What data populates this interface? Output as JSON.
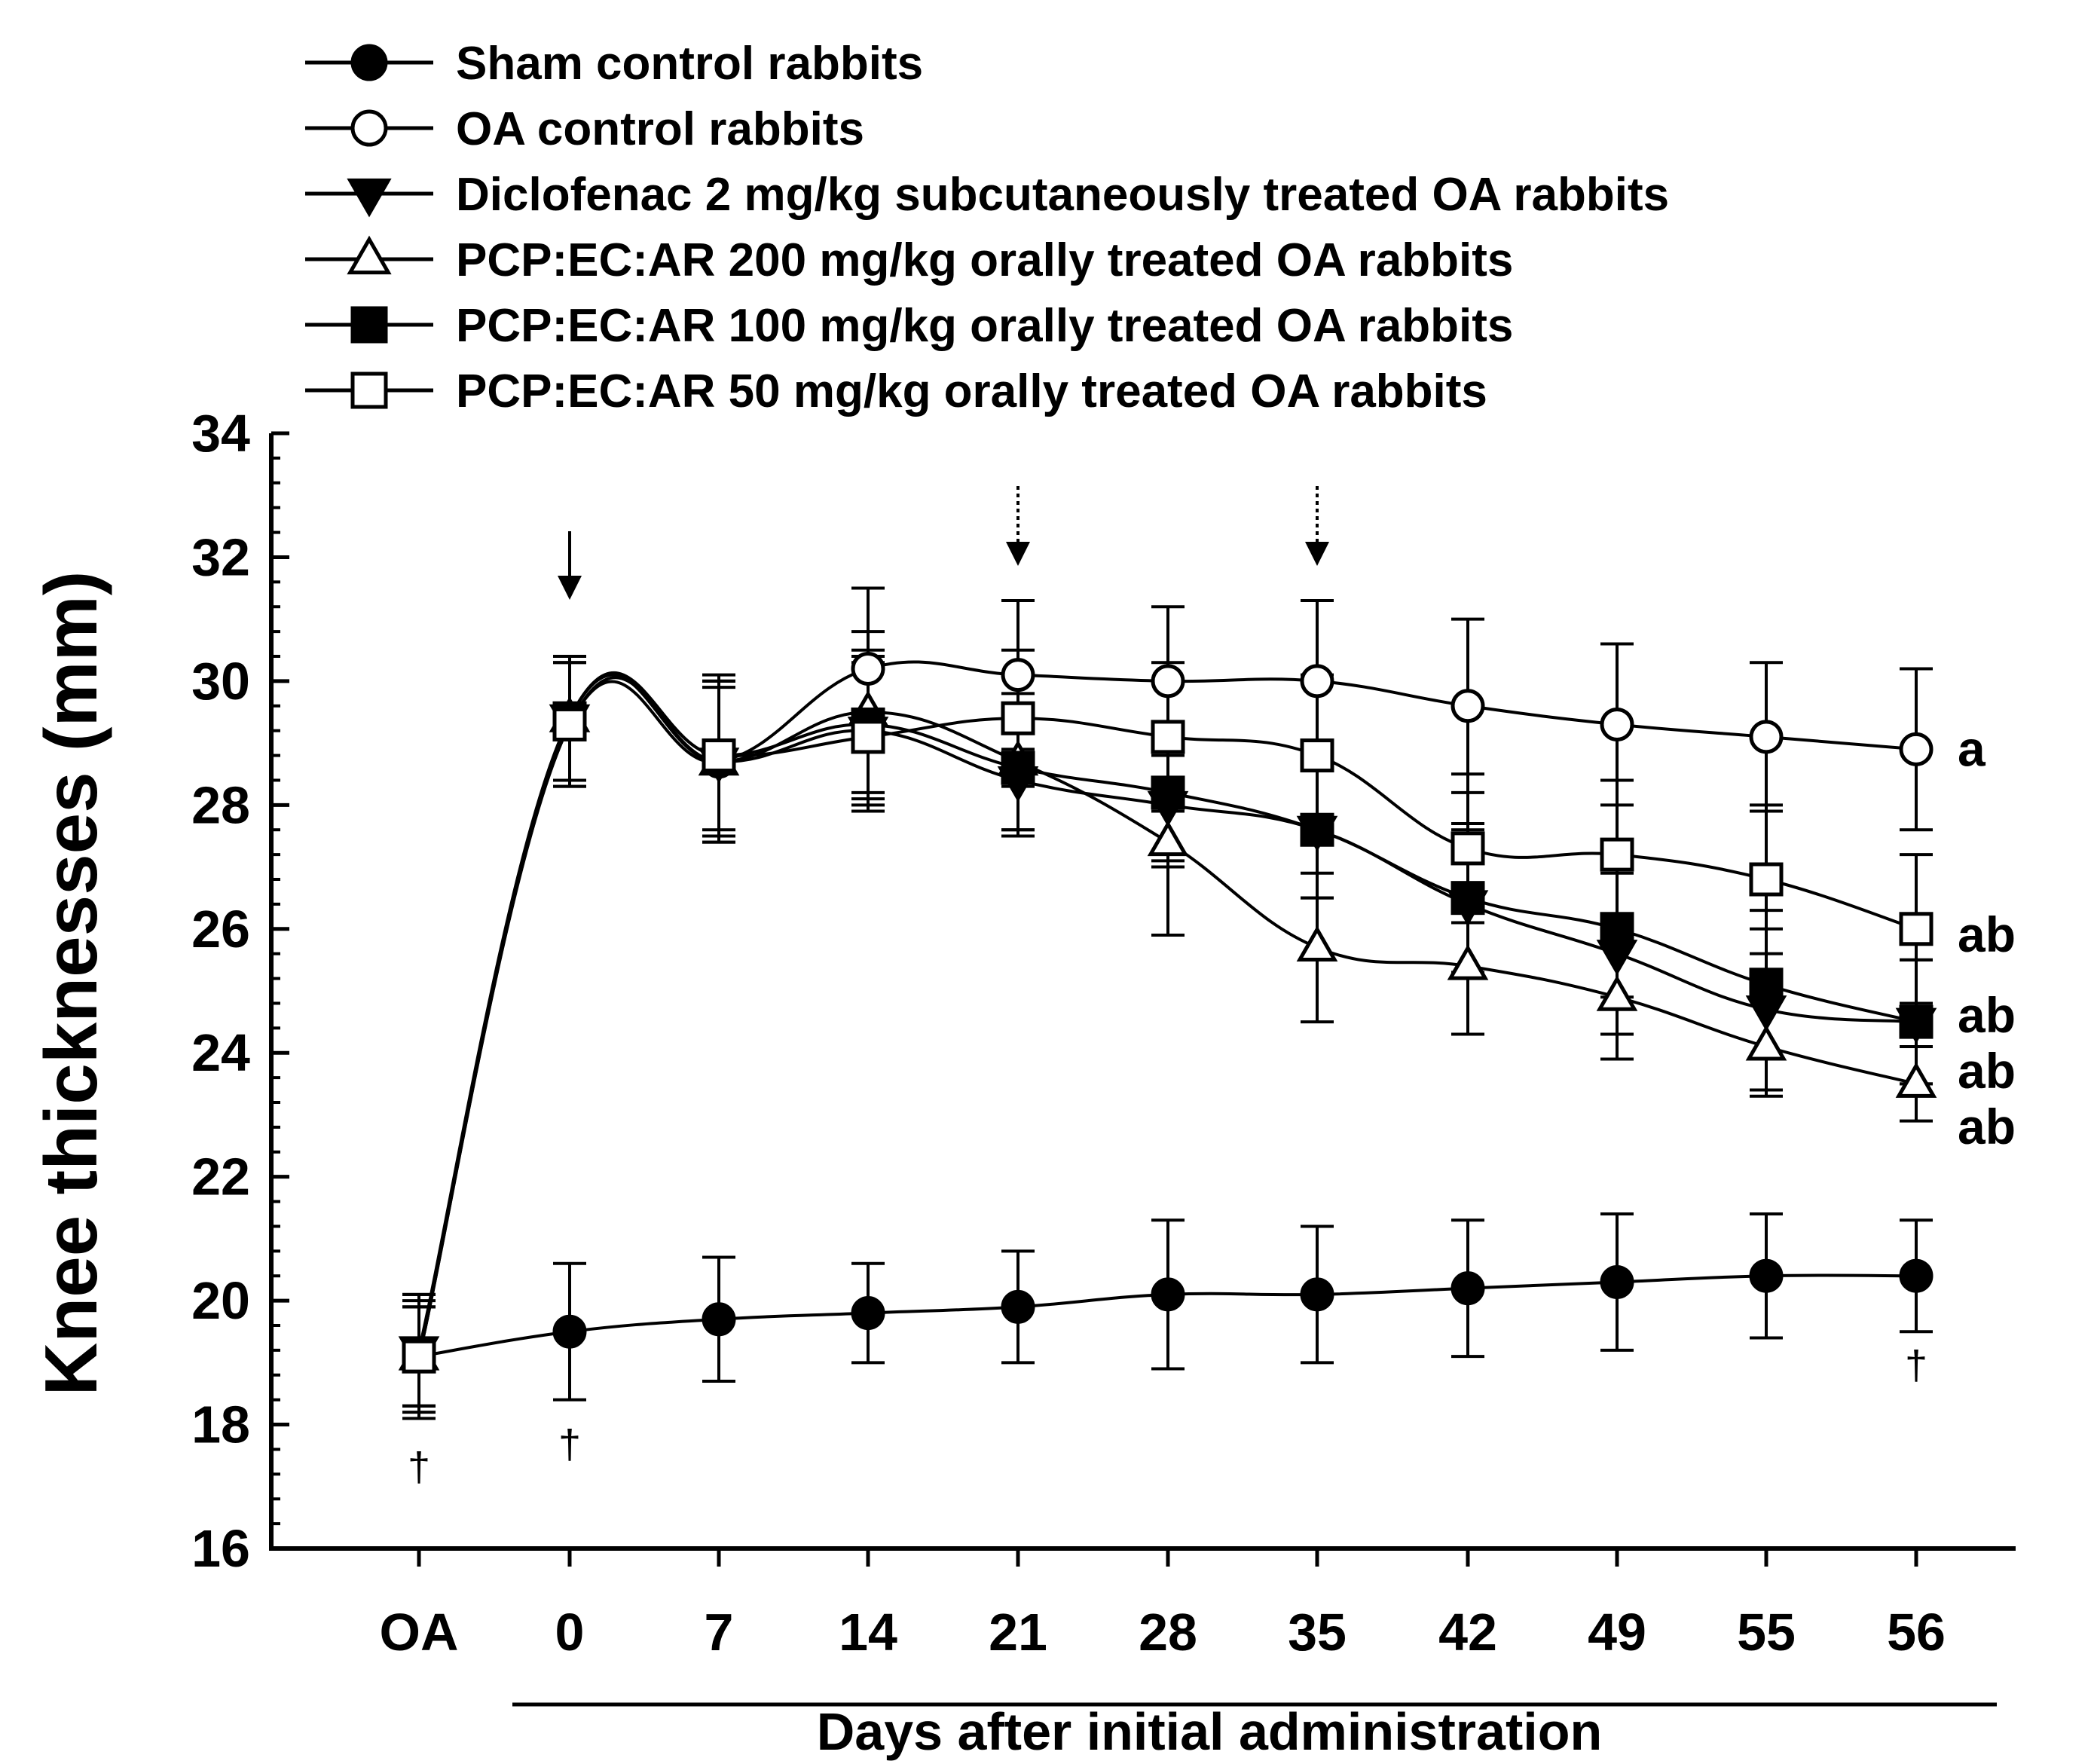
{
  "chart_data": {
    "type": "line",
    "title": "",
    "xlabel": "Days after initial administration",
    "ylabel": "Knee thicknesses (mm)",
    "categories": [
      "OA",
      "0",
      "7",
      "14",
      "21",
      "28",
      "35",
      "42",
      "49",
      "55",
      "56"
    ],
    "ylim": [
      16,
      34
    ],
    "yticks": [
      "16",
      "18",
      "20",
      "22",
      "24",
      "26",
      "28",
      "30",
      "32",
      "34"
    ],
    "series": [
      {
        "name": "Sham control rabbits",
        "marker": "circle-filled",
        "values": [
          19.1,
          19.5,
          19.7,
          19.8,
          19.9,
          20.1,
          20.1,
          20.2,
          20.3,
          20.4,
          20.4
        ],
        "errors": [
          0.9,
          1.1,
          1.0,
          0.8,
          0.9,
          1.2,
          1.1,
          1.1,
          1.1,
          1.0,
          0.9
        ]
      },
      {
        "name": "OA control rabbits",
        "marker": "circle-open",
        "values": [
          19.1,
          29.3,
          28.7,
          30.2,
          30.1,
          30.0,
          30.0,
          29.6,
          29.3,
          29.1,
          28.9
        ],
        "errors": [
          1.0,
          1.0,
          1.3,
          1.3,
          1.2,
          1.2,
          1.3,
          1.4,
          1.3,
          1.2,
          1.3
        ]
      },
      {
        "name": "Diclofenac 2 mg/kg subcutaneously treated OA rabbits",
        "marker": "triangle-down-filled",
        "values": [
          19.2,
          29.4,
          28.7,
          29.2,
          28.4,
          28.0,
          27.6,
          26.4,
          25.6,
          24.7,
          24.5
        ],
        "errors": [
          0.9,
          1.0,
          1.3,
          1.2,
          0.9,
          1.0,
          1.1,
          1.2,
          1.3,
          1.3,
          1.0
        ]
      },
      {
        "name": "PCP:EC:AR 200 mg/kg orally treated OA rabbits",
        "marker": "triangle-up-open",
        "values": [
          19.1,
          29.4,
          28.7,
          29.5,
          28.7,
          27.4,
          25.7,
          25.4,
          24.9,
          24.1,
          23.5
        ],
        "errors": [
          0.8,
          1.0,
          1.2,
          1.3,
          1.1,
          1.5,
          1.2,
          1.1,
          1.0,
          0.8,
          0.6
        ]
      },
      {
        "name": "PCP:EC:AR 100 mg/kg orally treated OA rabbits",
        "marker": "square-filled",
        "values": [
          19.1,
          29.4,
          28.8,
          29.3,
          28.6,
          28.2,
          27.6,
          26.5,
          26.0,
          25.1,
          24.5
        ],
        "errors": [
          0.8,
          1.0,
          1.3,
          1.2,
          1.0,
          1.1,
          1.1,
          1.2,
          1.1,
          1.2,
          1.0
        ]
      },
      {
        "name": "PCP:EC:AR 50 mg/kg orally treated OA rabbits",
        "marker": "square-open",
        "values": [
          19.1,
          29.3,
          28.8,
          29.1,
          29.4,
          29.1,
          28.8,
          27.3,
          27.2,
          26.8,
          26.0
        ],
        "errors": [
          0.8,
          1.0,
          1.2,
          1.2,
          1.1,
          1.2,
          1.3,
          1.2,
          1.2,
          1.2,
          1.2
        ]
      }
    ],
    "significance_labels": [
      {
        "text": "a",
        "value": 28.9
      },
      {
        "text": "ab",
        "value": 25.9
      },
      {
        "text": "ab",
        "value": 24.6
      },
      {
        "text": "ab",
        "value": 23.7
      },
      {
        "text": "ab",
        "value": 22.8
      }
    ],
    "dagger_marks": [
      {
        "text": "†",
        "category": "OA"
      },
      {
        "text": "†",
        "category": "0"
      },
      {
        "text": "†",
        "category": "56"
      }
    ],
    "arrows": [
      {
        "category": "0",
        "style": "solid"
      },
      {
        "category": "21",
        "style": "dotted"
      },
      {
        "category": "35",
        "style": "dotted"
      }
    ],
    "legend_position": "top-left"
  }
}
